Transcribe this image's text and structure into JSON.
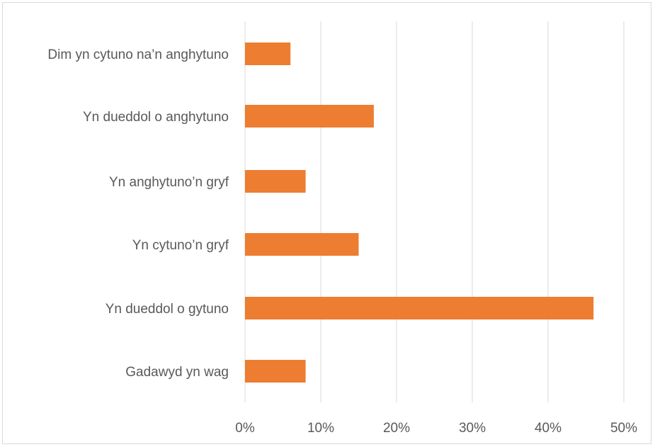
{
  "chart_data": {
    "type": "bar",
    "orientation": "horizontal",
    "title": "",
    "xlabel": "",
    "ylabel": "",
    "categories": [
      "Dim yn cytuno na’n anghytuno",
      "Yn dueddol o anghytuno",
      "Yn anghytuno’n gryf",
      "Yn cytuno’n gryf",
      "Yn dueddol o gytuno",
      "Gadawyd yn wag"
    ],
    "values": [
      6,
      17,
      8,
      15,
      46,
      8
    ],
    "xlim": [
      0,
      50
    ],
    "ticks": [
      "0%",
      "10%",
      "20%",
      "30%",
      "40%",
      "50%"
    ],
    "tick_values": [
      0,
      10,
      20,
      30,
      40,
      50
    ],
    "grid": true,
    "legend": "none",
    "colors": {
      "bar": "#ed7d31",
      "grid": "#d9d9d9",
      "text": "#595959"
    }
  }
}
